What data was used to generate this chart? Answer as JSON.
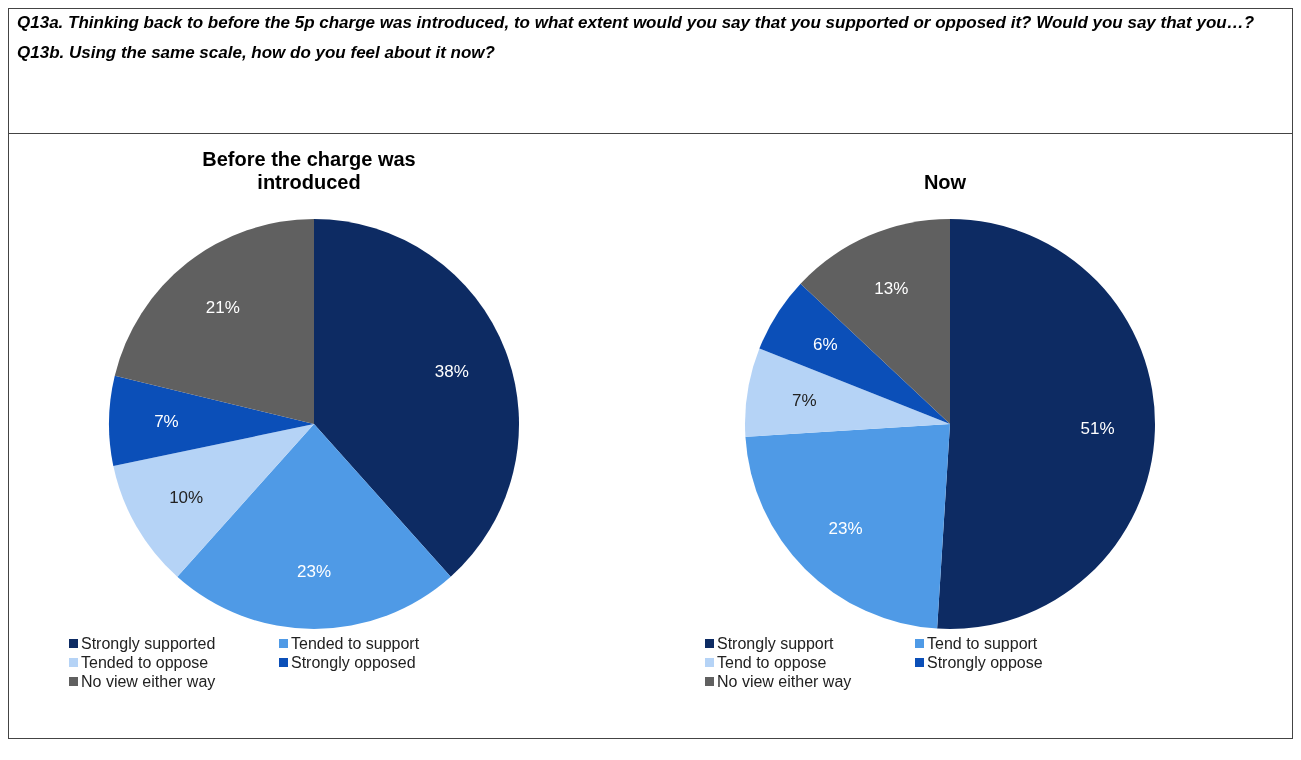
{
  "chart_data": [
    {
      "type": "pie",
      "title": "Before the charge was introduced",
      "annotations": [
        "Q13a. Thinking back to before the 5p charge was introduced, to what extent would you say that you supported or opposed it? Would you say that you…?",
        "Q13b. Using the same scale, how do you feel about it now?"
      ],
      "categories": [
        "Strongly supported",
        "Tended to support",
        "Tended to oppose",
        "Strongly opposed",
        "No view either way"
      ],
      "values": [
        38,
        23,
        10,
        7,
        21
      ],
      "value_labels": [
        "38%",
        "23%",
        "10%",
        "7%",
        "21%"
      ],
      "colors": [
        "#0d2b63",
        "#4f9ae6",
        "#b5d3f6",
        "#0b4fb8",
        "#606060"
      ],
      "legend": "bottom"
    },
    {
      "type": "pie",
      "title": "Now",
      "categories": [
        "Strongly support",
        "Tend to support",
        "Tend to oppose",
        "Strongly oppose",
        "No view either way"
      ],
      "values": [
        51,
        23,
        7,
        6,
        13
      ],
      "value_labels": [
        "51%",
        "23%",
        "7%",
        "6%",
        "13%"
      ],
      "colors": [
        "#0d2b63",
        "#4f9ae6",
        "#b5d3f6",
        "#0b4fb8",
        "#606060"
      ],
      "legend": "bottom"
    }
  ]
}
